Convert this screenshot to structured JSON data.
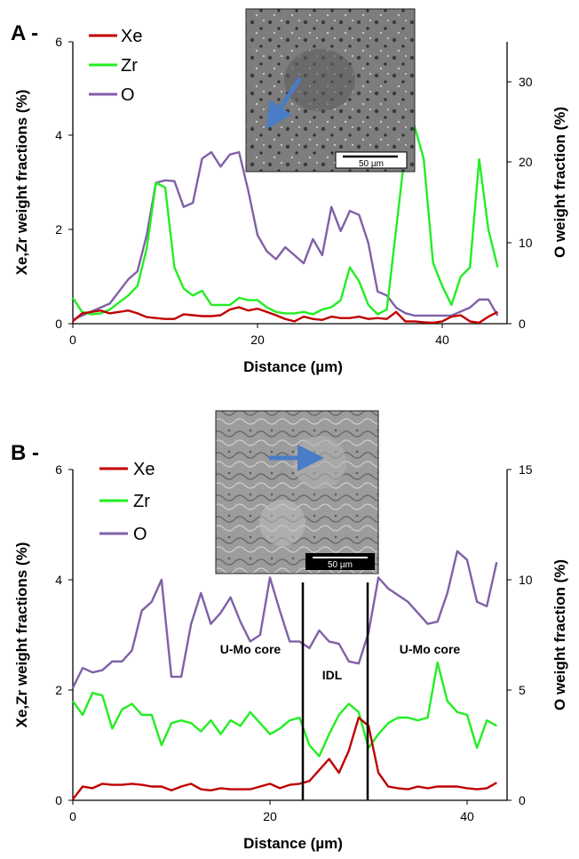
{
  "colors": {
    "xe": "#c00000",
    "zr": "#22ee22",
    "o": "#8060a8",
    "arrow": "#4a7cc7"
  },
  "chart_data": [
    {
      "type": "line",
      "panel_label": "A -",
      "xlabel": "Distance (µm)",
      "ylabel": "Xe,Zr weight fractions (%)",
      "y2label": "O weight fraction (%)",
      "xlim": [
        0,
        47
      ],
      "ylim": [
        0,
        6
      ],
      "y2lim": [
        0,
        35
      ],
      "xticks": [
        "0",
        "20",
        "40"
      ],
      "yticks": [
        "0",
        "2",
        "4",
        "6"
      ],
      "y2ticks": [
        "0",
        "10",
        "20",
        "30"
      ],
      "legend": [
        "Xe",
        "Zr",
        "O"
      ],
      "inset": {
        "scale_label": "50 µm"
      },
      "series": [
        {
          "name": "Xe",
          "axis": "left",
          "color": "#c00000",
          "x": [
            0,
            1,
            2,
            3,
            4,
            5,
            6,
            7,
            8,
            9,
            10,
            11,
            12,
            13,
            14,
            15,
            16,
            17,
            18,
            19,
            20,
            21,
            22,
            23,
            24,
            25,
            26,
            27,
            28,
            29,
            30,
            31,
            32,
            33,
            34,
            35,
            36,
            37,
            38,
            39,
            40,
            41,
            42,
            43,
            44,
            45,
            46
          ],
          "y": [
            0.05,
            0.22,
            0.25,
            0.28,
            0.22,
            0.25,
            0.28,
            0.22,
            0.14,
            0.12,
            0.1,
            0.1,
            0.2,
            0.18,
            0.16,
            0.16,
            0.18,
            0.3,
            0.35,
            0.28,
            0.32,
            0.25,
            0.18,
            0.1,
            0.05,
            0.15,
            0.1,
            0.08,
            0.15,
            0.12,
            0.12,
            0.15,
            0.1,
            0.12,
            0.1,
            0.25,
            0.05,
            0.05,
            0.03,
            0.02,
            0.05,
            0.15,
            0.18,
            0.05,
            0.02,
            0.15,
            0.25
          ]
        },
        {
          "name": "Zr",
          "axis": "left",
          "color": "#22ee22",
          "x": [
            0,
            1,
            2,
            3,
            4,
            5,
            6,
            7,
            8,
            9,
            10,
            11,
            12,
            13,
            14,
            15,
            16,
            17,
            18,
            19,
            20,
            21,
            22,
            23,
            24,
            25,
            26,
            27,
            28,
            29,
            30,
            31,
            32,
            33,
            34,
            35,
            36,
            37,
            38,
            39,
            40,
            41,
            42,
            43,
            44,
            45,
            46
          ],
          "y": [
            0.55,
            0.25,
            0.2,
            0.22,
            0.3,
            0.45,
            0.6,
            0.8,
            1.6,
            3.0,
            2.9,
            1.2,
            0.75,
            0.6,
            0.7,
            0.4,
            0.4,
            0.4,
            0.55,
            0.5,
            0.5,
            0.35,
            0.25,
            0.22,
            0.22,
            0.25,
            0.2,
            0.3,
            0.35,
            0.5,
            1.2,
            0.9,
            0.4,
            0.2,
            0.3,
            2.0,
            3.7,
            4.2,
            3.5,
            1.3,
            0.8,
            0.4,
            1.0,
            1.2,
            3.5,
            2.0,
            1.2
          ]
        },
        {
          "name": "O",
          "axis": "right",
          "color": "#8060a8",
          "x": [
            0,
            1,
            2,
            3,
            4,
            5,
            6,
            7,
            8,
            9,
            10,
            11,
            12,
            13,
            14,
            15,
            16,
            17,
            18,
            19,
            20,
            21,
            22,
            23,
            24,
            25,
            26,
            27,
            28,
            29,
            30,
            31,
            32,
            33,
            34,
            35,
            36,
            37,
            38,
            39,
            40,
            41,
            42,
            43,
            44,
            45,
            46
          ],
          "y": [
            0.5,
            1.0,
            1.5,
            2.0,
            2.5,
            4.0,
            5.5,
            6.5,
            11.0,
            17.5,
            17.8,
            17.7,
            14.5,
            15.0,
            20.5,
            21.3,
            19.5,
            21.0,
            21.3,
            16.5,
            11.0,
            9.0,
            8.0,
            9.5,
            8.5,
            7.5,
            10.5,
            8.5,
            14.5,
            11.5,
            14.0,
            13.5,
            10.0,
            4.0,
            3.5,
            2.0,
            1.3,
            1.0,
            1.0,
            1.0,
            1.0,
            1.0,
            1.5,
            2.0,
            3.0,
            3.0,
            1.0
          ]
        }
      ]
    },
    {
      "type": "line",
      "panel_label": "B -",
      "xlabel": "Distance (µm)",
      "ylabel": "Xe,Zr weight fractions (%)",
      "y2label": "O weight fraction  (%)",
      "xlim": [
        0,
        44
      ],
      "ylim": [
        0,
        6
      ],
      "y2lim": [
        0,
        15
      ],
      "xticks": [
        "0",
        "20",
        "40"
      ],
      "yticks": [
        "0",
        "2",
        "4",
        "6"
      ],
      "y2ticks": [
        "0",
        "5",
        "10",
        "15"
      ],
      "legend": [
        "Xe",
        "Zr",
        "O"
      ],
      "inset": {
        "scale_label": "50 µm"
      },
      "annotations": [
        "U-Mo core",
        "IDL",
        "U-Mo core"
      ],
      "boundaries_x": [
        23.3,
        30.2
      ],
      "series": [
        {
          "name": "Xe",
          "axis": "left",
          "color": "#c00000",
          "x": [
            0,
            1,
            2,
            3,
            4,
            5,
            6,
            7,
            8,
            9,
            10,
            11,
            12,
            13,
            14,
            15,
            16,
            17,
            18,
            19,
            20,
            21,
            22,
            23,
            24,
            25,
            26,
            27,
            28,
            29,
            30,
            31,
            32,
            33,
            34,
            35,
            36,
            37,
            38,
            39,
            40,
            41,
            42,
            43
          ],
          "y": [
            0.02,
            0.25,
            0.22,
            0.3,
            0.28,
            0.28,
            0.3,
            0.28,
            0.25,
            0.25,
            0.18,
            0.25,
            0.3,
            0.2,
            0.18,
            0.22,
            0.2,
            0.2,
            0.2,
            0.25,
            0.3,
            0.22,
            0.28,
            0.3,
            0.35,
            0.55,
            0.75,
            0.5,
            0.9,
            1.5,
            1.35,
            0.5,
            0.25,
            0.22,
            0.2,
            0.25,
            0.22,
            0.25,
            0.25,
            0.25,
            0.22,
            0.2,
            0.22,
            0.32
          ]
        },
        {
          "name": "Zr",
          "axis": "left",
          "color": "#22ee22",
          "x": [
            0,
            1,
            2,
            3,
            4,
            5,
            6,
            7,
            8,
            9,
            10,
            11,
            12,
            13,
            14,
            15,
            16,
            17,
            18,
            19,
            20,
            21,
            22,
            23,
            24,
            25,
            26,
            27,
            28,
            29,
            30,
            31,
            32,
            33,
            34,
            35,
            36,
            37,
            38,
            39,
            40,
            41,
            42,
            43
          ],
          "y": [
            1.8,
            1.55,
            1.95,
            1.9,
            1.3,
            1.65,
            1.75,
            1.55,
            1.55,
            1.0,
            1.4,
            1.45,
            1.4,
            1.25,
            1.45,
            1.2,
            1.45,
            1.35,
            1.6,
            1.4,
            1.2,
            1.3,
            1.45,
            1.5,
            1.0,
            0.8,
            1.2,
            1.55,
            1.75,
            1.6,
            0.95,
            1.2,
            1.4,
            1.5,
            1.5,
            1.45,
            1.5,
            2.5,
            1.8,
            1.6,
            1.55,
            0.95,
            1.45,
            1.35
          ]
        },
        {
          "name": "O",
          "axis": "right",
          "color": "#8060a8",
          "x": [
            0,
            1,
            2,
            3,
            4,
            5,
            6,
            7,
            8,
            9,
            10,
            11,
            12,
            13,
            14,
            15,
            16,
            17,
            18,
            19,
            20,
            21,
            22,
            23,
            24,
            25,
            26,
            27,
            28,
            29,
            30,
            31,
            32,
            33,
            34,
            35,
            36,
            37,
            38,
            39,
            40,
            41,
            42,
            43
          ],
          "y": [
            5.1,
            6.0,
            5.8,
            5.9,
            6.3,
            6.3,
            6.8,
            8.6,
            9.0,
            10.0,
            5.6,
            5.6,
            8.0,
            9.4,
            8.0,
            8.5,
            9.2,
            8.1,
            7.2,
            7.5,
            10.1,
            8.6,
            7.2,
            7.2,
            6.9,
            7.7,
            7.2,
            7.1,
            6.3,
            6.2,
            7.6,
            10.1,
            9.6,
            9.3,
            9.0,
            8.5,
            8.0,
            8.1,
            9.4,
            11.3,
            10.9,
            9.0,
            8.8,
            10.8
          ]
        }
      ]
    }
  ]
}
